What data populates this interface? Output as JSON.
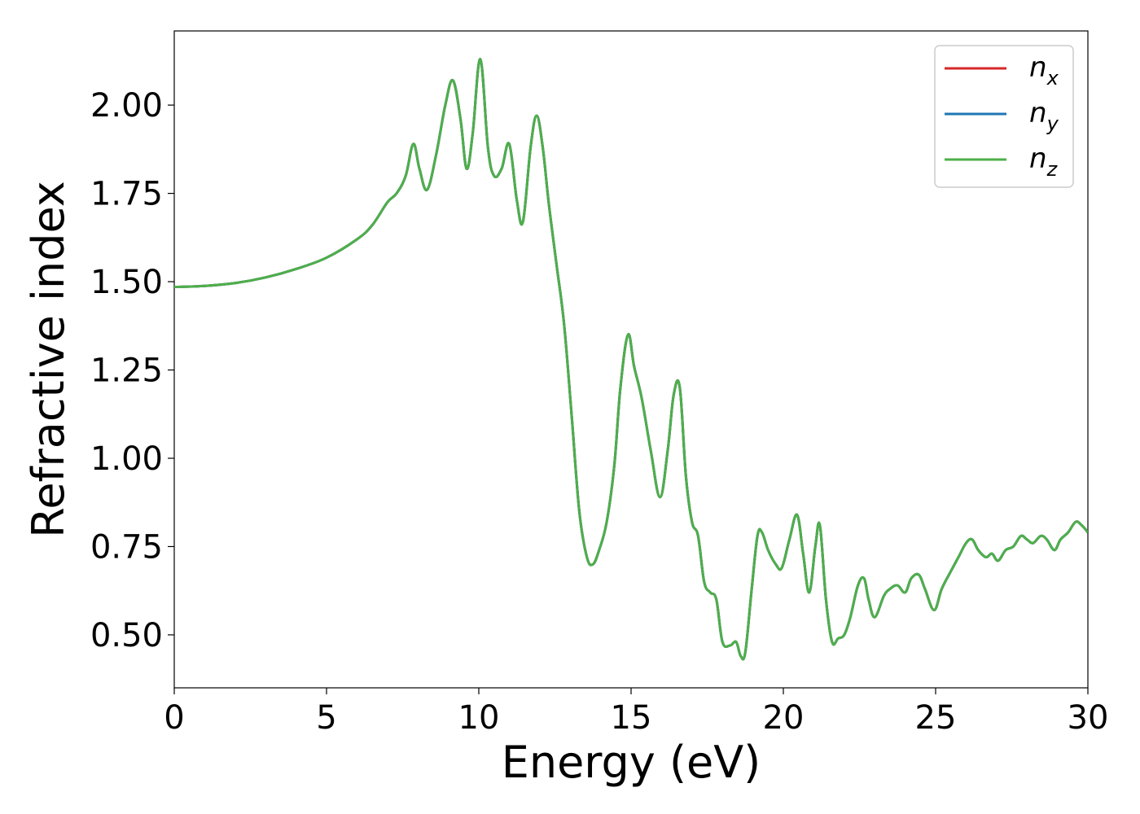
{
  "chart_data": {
    "type": "line",
    "xlabel": "Energy (eV)",
    "ylabel": "Refractive index",
    "xlim": [
      0,
      30
    ],
    "ylim": [
      0.35,
      2.21
    ],
    "x_ticks": [
      0,
      5,
      10,
      15,
      20,
      25,
      30
    ],
    "x_tick_labels": [
      "0",
      "5",
      "10",
      "15",
      "20",
      "25",
      "30"
    ],
    "y_ticks": [
      0.5,
      0.75,
      1.0,
      1.25,
      1.5,
      1.75,
      2.0
    ],
    "y_tick_labels": [
      "0.50",
      "0.75",
      "1.00",
      "1.25",
      "1.50",
      "1.75",
      "2.00"
    ],
    "grid": false,
    "legend_placement": "top-right",
    "x": [
      0,
      1,
      2,
      3,
      4,
      5,
      6,
      6.5,
      7,
      7.3,
      7.6,
      7.85,
      8.05,
      8.3,
      8.6,
      8.9,
      9.15,
      9.4,
      9.6,
      9.8,
      10.05,
      10.3,
      10.5,
      10.75,
      11.0,
      11.25,
      11.45,
      11.7,
      11.9,
      12.1,
      12.3,
      12.55,
      12.8,
      13.05,
      13.3,
      13.55,
      13.75,
      13.95,
      14.2,
      14.45,
      14.65,
      14.9,
      15.1,
      15.35,
      15.65,
      15.95,
      16.2,
      16.4,
      16.6,
      16.8,
      17.0,
      17.2,
      17.4,
      17.6,
      17.8,
      18.0,
      18.25,
      18.45,
      18.6,
      18.75,
      18.95,
      19.15,
      19.3,
      19.5,
      19.75,
      19.95,
      20.2,
      20.45,
      20.65,
      20.85,
      21.05,
      21.2,
      21.4,
      21.6,
      21.8,
      22.0,
      22.2,
      22.45,
      22.65,
      22.8,
      23.0,
      23.3,
      23.5,
      23.75,
      24.0,
      24.2,
      24.45,
      24.65,
      24.95,
      25.2,
      25.5,
      25.75,
      26.0,
      26.2,
      26.4,
      26.65,
      26.85,
      27.05,
      27.3,
      27.55,
      27.8,
      28.0,
      28.2,
      28.45,
      28.65,
      28.9,
      29.1,
      29.35,
      29.6,
      29.8,
      30.0
    ],
    "series": [
      {
        "name": "n_x",
        "color": "#d62728",
        "values": [
          1.485,
          1.488,
          1.496,
          1.512,
          1.536,
          1.568,
          1.62,
          1.66,
          1.725,
          1.75,
          1.8,
          1.89,
          1.82,
          1.76,
          1.86,
          2.0,
          2.07,
          1.96,
          1.82,
          1.92,
          2.13,
          1.88,
          1.8,
          1.82,
          1.89,
          1.73,
          1.67,
          1.88,
          1.97,
          1.88,
          1.72,
          1.55,
          1.38,
          1.12,
          0.85,
          0.72,
          0.7,
          0.74,
          0.82,
          0.98,
          1.2,
          1.35,
          1.26,
          1.17,
          1.02,
          0.89,
          1.02,
          1.18,
          1.2,
          0.95,
          0.82,
          0.78,
          0.65,
          0.62,
          0.6,
          0.48,
          0.47,
          0.48,
          0.44,
          0.45,
          0.62,
          0.78,
          0.79,
          0.74,
          0.7,
          0.69,
          0.77,
          0.84,
          0.73,
          0.62,
          0.75,
          0.81,
          0.6,
          0.48,
          0.49,
          0.5,
          0.55,
          0.64,
          0.66,
          0.6,
          0.55,
          0.61,
          0.63,
          0.64,
          0.62,
          0.66,
          0.67,
          0.63,
          0.57,
          0.63,
          0.68,
          0.72,
          0.76,
          0.77,
          0.74,
          0.72,
          0.73,
          0.71,
          0.74,
          0.75,
          0.78,
          0.77,
          0.76,
          0.78,
          0.77,
          0.74,
          0.77,
          0.79,
          0.82,
          0.81,
          0.79
        ]
      },
      {
        "name": "n_y",
        "color": "#1f77b4",
        "values": [
          1.485,
          1.488,
          1.496,
          1.512,
          1.536,
          1.568,
          1.62,
          1.66,
          1.725,
          1.75,
          1.8,
          1.89,
          1.82,
          1.76,
          1.86,
          2.0,
          2.07,
          1.96,
          1.82,
          1.92,
          2.13,
          1.88,
          1.8,
          1.82,
          1.89,
          1.73,
          1.67,
          1.88,
          1.97,
          1.88,
          1.72,
          1.55,
          1.38,
          1.12,
          0.85,
          0.72,
          0.7,
          0.74,
          0.82,
          0.98,
          1.2,
          1.35,
          1.26,
          1.17,
          1.02,
          0.89,
          1.02,
          1.18,
          1.2,
          0.95,
          0.82,
          0.78,
          0.65,
          0.62,
          0.6,
          0.48,
          0.47,
          0.48,
          0.44,
          0.45,
          0.62,
          0.78,
          0.79,
          0.74,
          0.7,
          0.69,
          0.77,
          0.84,
          0.73,
          0.62,
          0.75,
          0.81,
          0.6,
          0.48,
          0.49,
          0.5,
          0.55,
          0.64,
          0.66,
          0.6,
          0.55,
          0.61,
          0.63,
          0.64,
          0.62,
          0.66,
          0.67,
          0.63,
          0.57,
          0.63,
          0.68,
          0.72,
          0.76,
          0.77,
          0.74,
          0.72,
          0.73,
          0.71,
          0.74,
          0.75,
          0.78,
          0.77,
          0.76,
          0.78,
          0.77,
          0.74,
          0.77,
          0.79,
          0.82,
          0.81,
          0.79
        ]
      },
      {
        "name": "n_z",
        "color": "#4daf4a",
        "values": [
          1.485,
          1.488,
          1.496,
          1.512,
          1.536,
          1.568,
          1.62,
          1.66,
          1.725,
          1.75,
          1.8,
          1.89,
          1.82,
          1.76,
          1.86,
          2.0,
          2.07,
          1.96,
          1.82,
          1.92,
          2.13,
          1.88,
          1.8,
          1.82,
          1.89,
          1.73,
          1.67,
          1.88,
          1.97,
          1.88,
          1.72,
          1.55,
          1.38,
          1.12,
          0.85,
          0.72,
          0.7,
          0.74,
          0.82,
          0.98,
          1.2,
          1.35,
          1.26,
          1.17,
          1.02,
          0.89,
          1.02,
          1.18,
          1.2,
          0.95,
          0.82,
          0.78,
          0.65,
          0.62,
          0.6,
          0.48,
          0.47,
          0.48,
          0.44,
          0.45,
          0.62,
          0.78,
          0.79,
          0.74,
          0.7,
          0.69,
          0.77,
          0.84,
          0.73,
          0.62,
          0.75,
          0.81,
          0.6,
          0.48,
          0.49,
          0.5,
          0.55,
          0.64,
          0.66,
          0.6,
          0.55,
          0.61,
          0.63,
          0.64,
          0.62,
          0.66,
          0.67,
          0.63,
          0.57,
          0.63,
          0.68,
          0.72,
          0.76,
          0.77,
          0.74,
          0.72,
          0.73,
          0.71,
          0.74,
          0.75,
          0.78,
          0.77,
          0.76,
          0.78,
          0.77,
          0.74,
          0.77,
          0.79,
          0.82,
          0.81,
          0.79
        ]
      }
    ],
    "legend": [
      {
        "base": "n",
        "sub": "x",
        "color": "#d62728"
      },
      {
        "base": "n",
        "sub": "y",
        "color": "#1f77b4"
      },
      {
        "base": "n",
        "sub": "z",
        "color": "#4daf4a"
      }
    ]
  }
}
